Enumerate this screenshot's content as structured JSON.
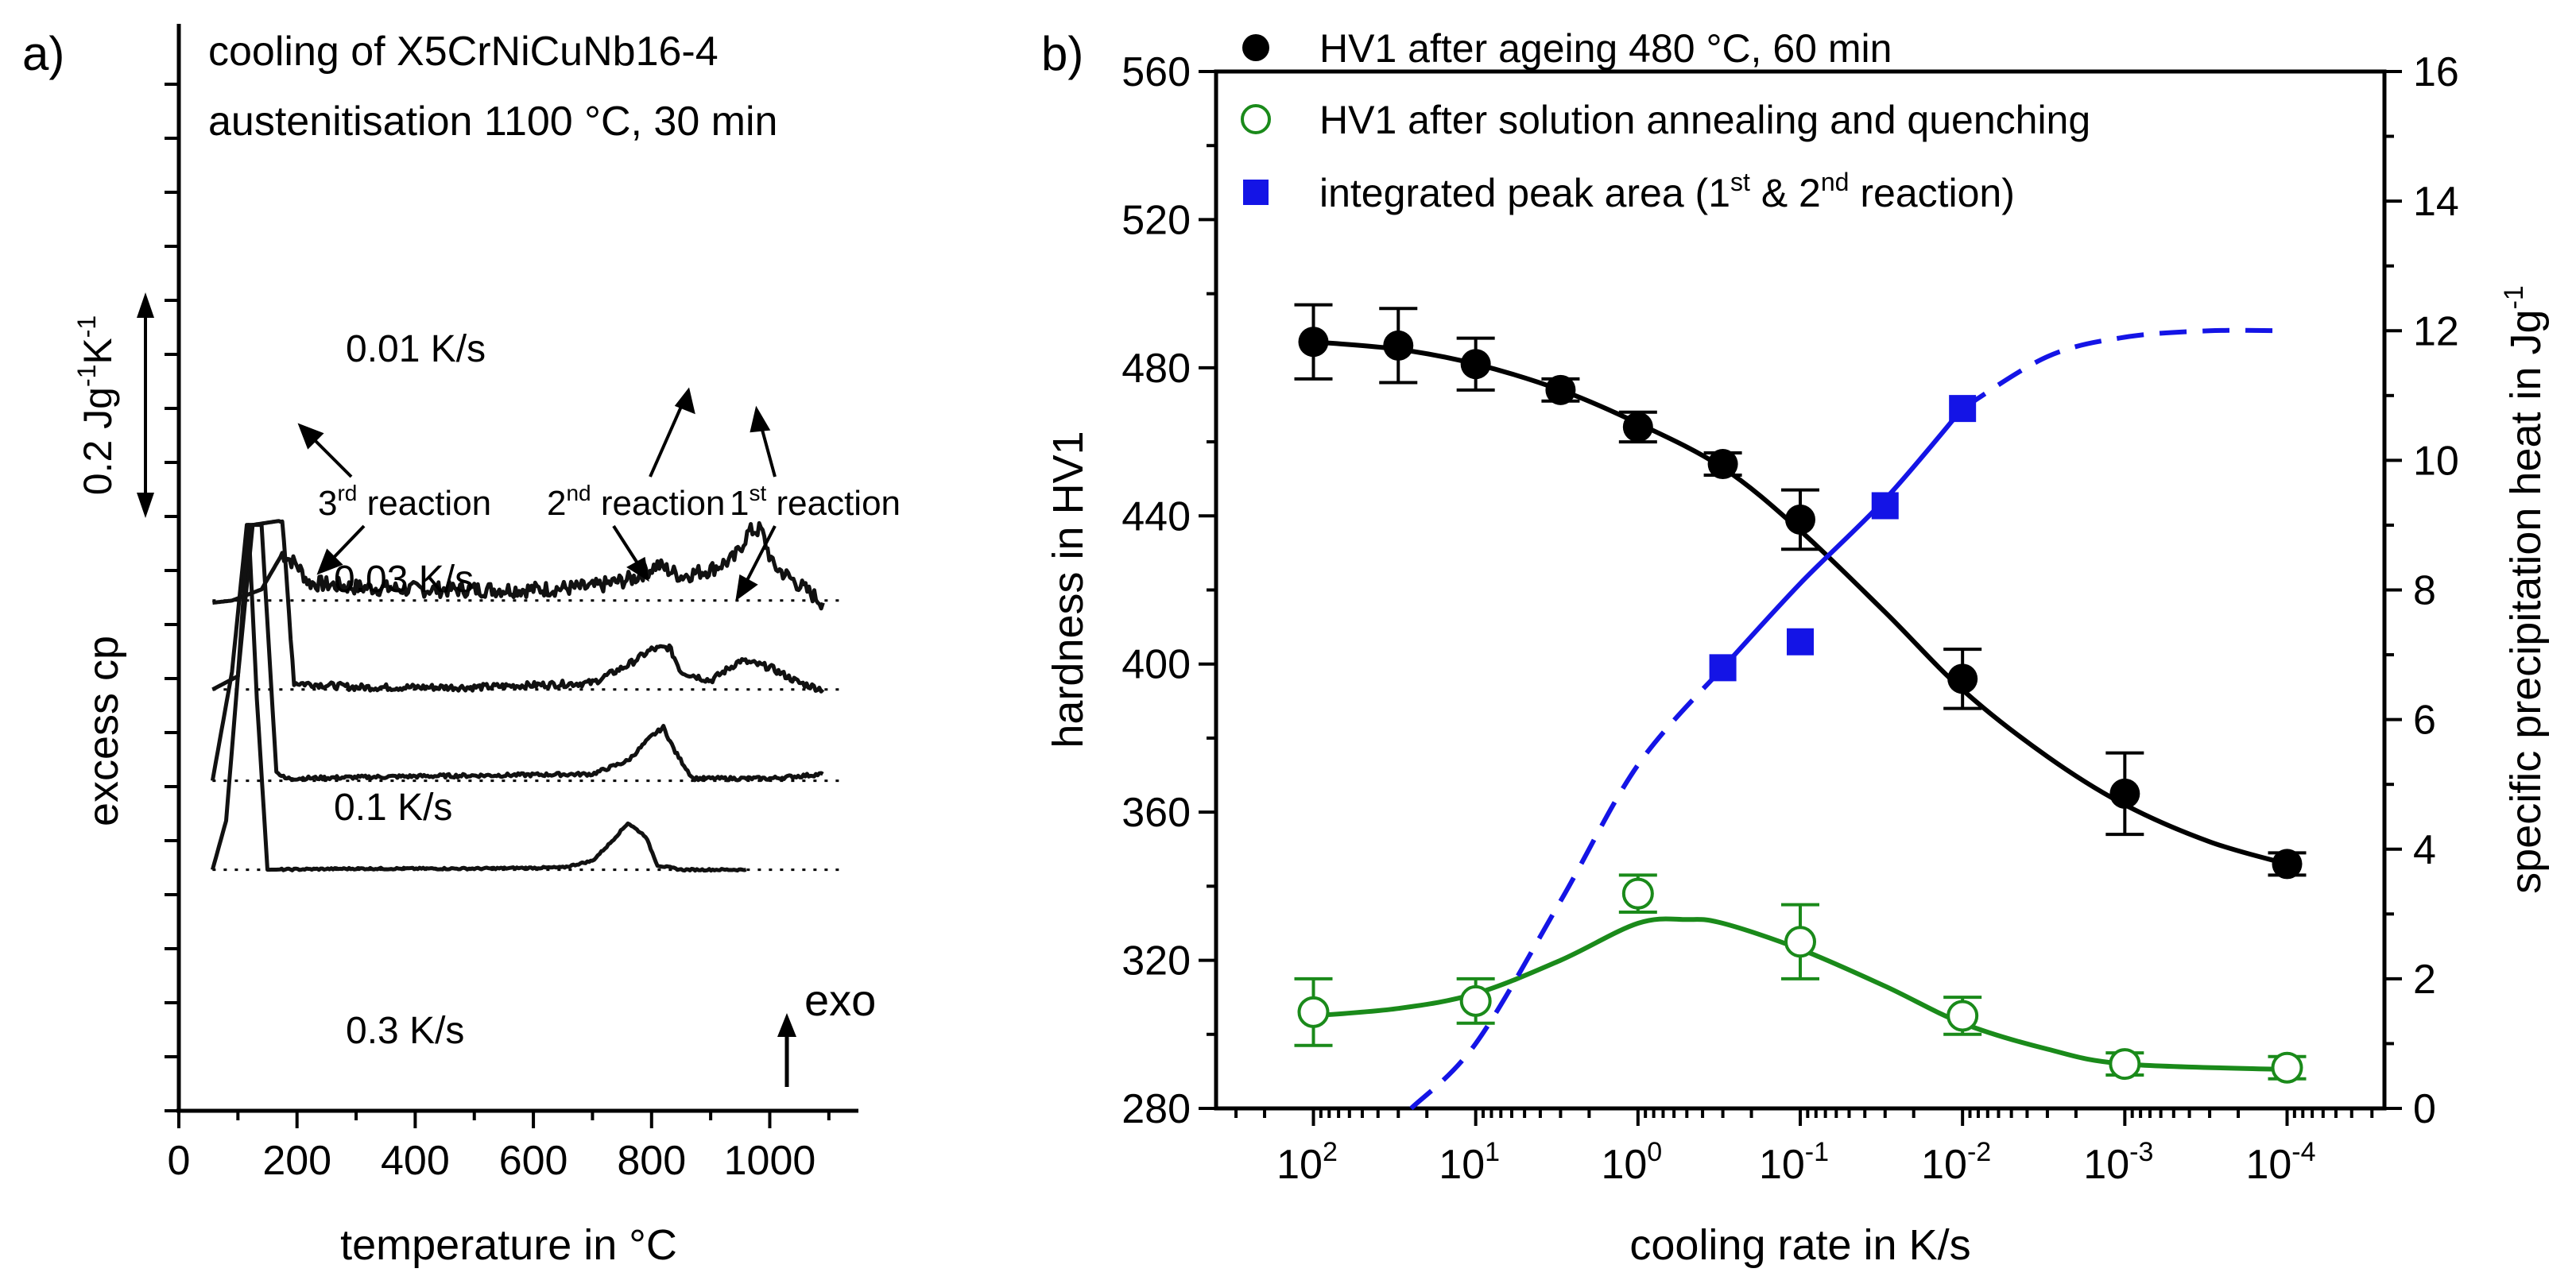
{
  "chart_data": [
    {
      "panel_label": "a)",
      "type": "line",
      "title_lines": [
        "cooling of X5CrNiCuNb16-4",
        "austenitisation 1100 °C, 30 min"
      ],
      "xlabel": "temperature in °C",
      "ylabel": "excess cp",
      "xlim": [
        0,
        1150
      ],
      "x_ticks": [
        0,
        200,
        400,
        600,
        800,
        1000
      ],
      "x_tick_labels": [
        "0",
        "200",
        "400",
        "600",
        "800",
        "1000"
      ],
      "scale_bar": {
        "label_main": "0.2 Jg",
        "sup1": "-1",
        "mid": "K",
        "sup2": "-1",
        "value": 0.2
      },
      "exo_label": "exo",
      "series": [
        {
          "name": "0.01 K/s",
          "baseline": 0.74,
          "points": [
            [
              57,
              0.73
            ],
            [
              90,
              0.74
            ],
            [
              140,
              0.79
            ],
            [
              175,
              0.95
            ],
            [
              200,
              0.9
            ],
            [
              220,
              0.82
            ],
            [
              300,
              0.8
            ],
            [
              400,
              0.79
            ],
            [
              500,
              0.79
            ],
            [
              600,
              0.79
            ],
            [
              700,
              0.8
            ],
            [
              770,
              0.84
            ],
            [
              810,
              0.9
            ],
            [
              850,
              0.85
            ],
            [
              900,
              0.88
            ],
            [
              940,
              0.93
            ],
            [
              965,
              1.05
            ],
            [
              985,
              1.06
            ],
            [
              1005,
              0.9
            ],
            [
              1040,
              0.83
            ],
            [
              1090,
              0.73
            ]
          ],
          "noise": 0.035
        },
        {
          "name": "0.03 K/s",
          "baseline": 0.34,
          "points": [
            [
              57,
              0.34
            ],
            [
              100,
              0.4
            ],
            [
              125,
              1.08
            ],
            [
              175,
              1.1
            ],
            [
              195,
              0.37
            ],
            [
              300,
              0.35
            ],
            [
              500,
              0.35
            ],
            [
              700,
              0.37
            ],
            [
              760,
              0.45
            ],
            [
              800,
              0.52
            ],
            [
              830,
              0.53
            ],
            [
              850,
              0.42
            ],
            [
              900,
              0.38
            ],
            [
              950,
              0.47
            ],
            [
              1000,
              0.44
            ],
            [
              1050,
              0.37
            ],
            [
              1090,
              0.34
            ]
          ],
          "noise": 0.015
        },
        {
          "name": "0.1 K/s",
          "baseline": -0.07,
          "points": [
            [
              57,
              -0.07
            ],
            [
              90,
              0.42
            ],
            [
              115,
              1.08
            ],
            [
              140,
              1.08
            ],
            [
              165,
              -0.03
            ],
            [
              180,
              -0.06
            ],
            [
              400,
              -0.05
            ],
            [
              700,
              -0.04
            ],
            [
              760,
              0.02
            ],
            [
              800,
              0.13
            ],
            [
              820,
              0.17
            ],
            [
              840,
              0.06
            ],
            [
              870,
              -0.06
            ],
            [
              1000,
              -0.06
            ],
            [
              1090,
              -0.04
            ]
          ],
          "noise": 0.008
        },
        {
          "name": "0.3 K/s",
          "baseline": -0.47,
          "points": [
            [
              57,
              -0.47
            ],
            [
              80,
              -0.25
            ],
            [
              100,
              0.4
            ],
            [
              118,
              1.08
            ],
            [
              132,
              0.3
            ],
            [
              150,
              -0.47
            ],
            [
              300,
              -0.465
            ],
            [
              500,
              -0.465
            ],
            [
              650,
              -0.46
            ],
            [
              700,
              -0.43
            ],
            [
              730,
              -0.35
            ],
            [
              760,
              -0.26
            ],
            [
              790,
              -0.32
            ],
            [
              810,
              -0.45
            ],
            [
              850,
              -0.47
            ],
            [
              960,
              -0.47
            ]
          ],
          "noise": 0.004
        }
      ],
      "annotations": [
        {
          "sup": "rd",
          "pre": "3",
          "post": " reaction"
        },
        {
          "sup": "nd",
          "pre": "2",
          "post": " reaction"
        },
        {
          "sup": "st",
          "pre": "1",
          "post": " reaction"
        }
      ]
    },
    {
      "panel_label": "b)",
      "type": "scatter",
      "xlabel": "cooling rate in K/s",
      "ylabel": "hardness in HV1",
      "ylabel_right": {
        "text": "specific precipitation heat in Jg",
        "sup": "-1"
      },
      "x_axis": "log10, reversed",
      "xlim_log10": [
        2.6,
        -4.6
      ],
      "x_ticks": [
        {
          "base": "10",
          "exp": "2",
          "log": 2
        },
        {
          "base": "10",
          "exp": "1",
          "log": 1
        },
        {
          "base": "10",
          "exp": "0",
          "log": 0
        },
        {
          "base": "10",
          "exp": "-1",
          "log": -1
        },
        {
          "base": "10",
          "exp": "-2",
          "log": -2
        },
        {
          "base": "10",
          "exp": "-3",
          "log": -3
        },
        {
          "base": "10",
          "exp": "-4",
          "log": -4
        }
      ],
      "ylim": [
        280,
        560
      ],
      "y_ticks": [
        280,
        320,
        360,
        400,
        440,
        480,
        520,
        560
      ],
      "ylim_right": [
        0,
        16
      ],
      "y_ticks_right": [
        0,
        2,
        4,
        6,
        8,
        10,
        12,
        14,
        16
      ],
      "legend": [
        {
          "label": "HV1 after ageing 480 °C, 60 min",
          "marker": "filled-circle",
          "color": "#000000"
        },
        {
          "label": "HV1 after solution annealing and quenching",
          "marker": "open-circle",
          "color": "#1a8a1a"
        },
        {
          "label": "integrated peak area (1",
          "sup1": "st",
          "mid": " & 2",
          "sup2": "nd",
          "end": " reaction)",
          "marker": "filled-square",
          "color": "#1414e6"
        }
      ],
      "series": [
        {
          "name": "HV1 after ageing 480 °C, 60 min",
          "color": "#000000",
          "x": [
            100,
            30,
            10,
            3,
            1,
            0.3,
            0.1,
            0.01,
            0.001,
            0.0001
          ],
          "y": [
            487,
            486,
            481,
            474,
            464,
            454,
            439,
            396,
            365,
            346
          ],
          "err": [
            10,
            10,
            7,
            3,
            4,
            3,
            8,
            8,
            11,
            3
          ]
        },
        {
          "name": "HV1 after solution annealing and quenching",
          "color": "#1a8a1a",
          "x": [
            100,
            10,
            1,
            0.1,
            0.01,
            0.001,
            0.0001
          ],
          "y": [
            306,
            309,
            338,
            325,
            305,
            292,
            291
          ],
          "err": [
            9,
            6,
            5,
            10,
            5,
            3,
            3
          ]
        },
        {
          "name": "integrated peak area",
          "color": "#1414e6",
          "axis": "right",
          "x": [
            0.3,
            0.1,
            0.03,
            0.01
          ],
          "y": [
            6.8,
            7.2,
            9.3,
            10.8
          ]
        }
      ],
      "fits": [
        {
          "name": "ageing fit",
          "color": "#000000",
          "x": [
            100,
            30,
            10,
            3,
            1,
            0.3,
            0.1,
            0.03,
            0.01,
            0.003,
            0.001,
            0.0003,
            0.0001
          ],
          "y": [
            487,
            485,
            481,
            474,
            465,
            453,
            436,
            414,
            393,
            375,
            362,
            352,
            346
          ]
        },
        {
          "name": "quenching fit",
          "color": "#1a8a1a",
          "x": [
            100,
            30,
            10,
            3,
            1,
            0.5,
            0.3,
            0.1,
            0.03,
            0.01,
            0.003,
            0.001,
            0.0001
          ],
          "y": [
            305,
            307,
            311,
            320,
            330,
            331,
            330,
            323,
            313,
            303,
            296,
            292,
            290.5
          ]
        },
        {
          "name": "peak area fit",
          "color": "#1414e6",
          "axis": "right",
          "x": [
            25,
            10,
            3,
            1,
            0.3,
            0.1,
            0.03,
            0.01,
            0.003,
            0.001,
            0.0003,
            0.0001
          ],
          "y": [
            0,
            1,
            3.2,
            5.3,
            6.8,
            8.1,
            9.4,
            10.8,
            11.6,
            11.9,
            12.0,
            12.0
          ],
          "solid_range": [
            0.3,
            0.01
          ]
        }
      ]
    }
  ]
}
